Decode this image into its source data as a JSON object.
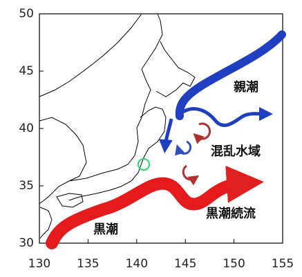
{
  "map": {
    "xlim": [
      130,
      155
    ],
    "ylim": [
      30,
      50
    ],
    "xticks": [
      130,
      135,
      140,
      145,
      150,
      155
    ],
    "yticks": [
      30,
      35,
      40,
      45,
      50
    ],
    "labels": [
      "親潮",
      "混乱水域",
      "黒潮続流",
      "黒潮"
    ]
  }
}
